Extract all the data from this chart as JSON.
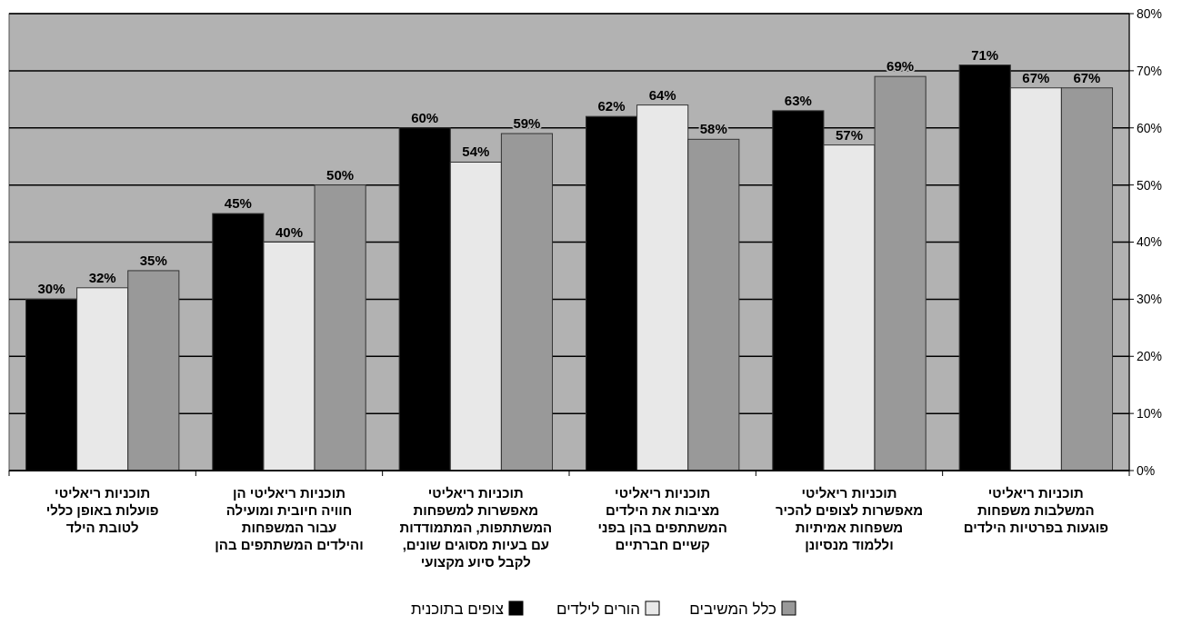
{
  "chart_data": {
    "type": "bar",
    "categories": [
      "תוכניות ריאליטי\nפועלות באופן כללי\nלטובת הילד",
      "תוכניות ריאליטי הן\nחוויה חיובית ומועילה\nעבור המשפחות\nוהילדים המשתתפים בהן",
      "תוכניות ריאליטי\nמאפשרות למשפחות\nהמשתתפות, המתמודדות\nעם בעיות מסוגים שונים,\nלקבל סיוע מקצועי",
      "תוכניות ריאליטי\nמציבות את הילדים\nהמשתתפים בהן בפני\nקשיים חברתיים",
      "תוכניות ריאליטי\nמאפשרות לצופים להכיר\nמשפחות אמיתיות\nוללמוד מנסיונן",
      "תוכניות ריאליטי\nהמשלבות משפחות\nפוגעות בפרטיות הילדים"
    ],
    "series": [
      {
        "name": "צופים בתוכנית",
        "color": "#000000",
        "values": [
          30,
          45,
          60,
          62,
          63,
          71
        ],
        "value_labels": [
          "30%",
          "45%",
          "60%",
          "62%",
          "63%",
          "71%"
        ]
      },
      {
        "name": "הורים לילדים",
        "color": "#e8e8e8",
        "values": [
          32,
          40,
          54,
          64,
          57,
          67
        ],
        "value_labels": [
          "32%",
          "40%",
          "54%",
          "64%",
          "57%",
          "67%"
        ]
      },
      {
        "name": "כלל המשיבים",
        "color": "#999999",
        "values": [
          35,
          50,
          59,
          58,
          69,
          67
        ],
        "value_labels": [
          "35%",
          "50%",
          "59%",
          "58%",
          "69%",
          "67%"
        ]
      }
    ],
    "ylim": [
      0,
      80
    ],
    "yticks": [
      {
        "value": 0,
        "label": "0%"
      },
      {
        "value": 10,
        "label": "10%"
      },
      {
        "value": 20,
        "label": "20%"
      },
      {
        "value": 30,
        "label": "30%"
      },
      {
        "value": 40,
        "label": "40%"
      },
      {
        "value": 50,
        "label": "50%"
      },
      {
        "value": 60,
        "label": "60%"
      },
      {
        "value": 70,
        "label": "70%"
      },
      {
        "value": 80,
        "label": "80%"
      }
    ],
    "grid": "y",
    "legend": "bottom"
  }
}
